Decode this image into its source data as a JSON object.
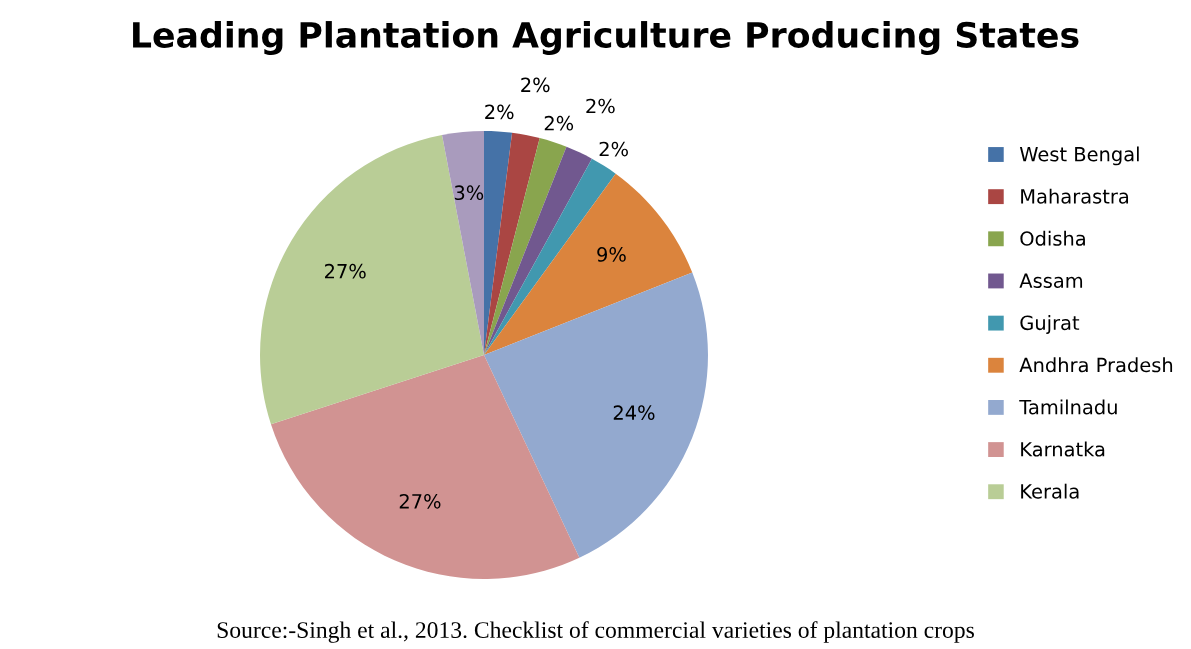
{
  "chart_data": {
    "type": "pie",
    "title": "Leading Plantation Agriculture Producing States",
    "categories": [
      "West Bengal",
      "Maharastra",
      "Odisha",
      "Assam",
      "Gujrat",
      "Andhra Pradesh",
      "Tamilnadu",
      "Karnatka",
      "Kerala",
      null
    ],
    "values": [
      2,
      2,
      2,
      2,
      2,
      9,
      24,
      27,
      27,
      3
    ],
    "colors": [
      "#4572a7",
      "#aa4643",
      "#89a54e",
      "#71588f",
      "#4198af",
      "#db843d",
      "#93a9cf",
      "#d19392",
      "#b9cd96",
      "#a99bbd"
    ],
    "value_labels": [
      "2%",
      "2%",
      "2%",
      "2%",
      "2%",
      "9%",
      "24%",
      "27%",
      "27%",
      "3%"
    ],
    "legend": "right",
    "annotations": [
      "Source:-Singh et al., 2013. Checklist of commercial varieties of plantation crops"
    ]
  }
}
